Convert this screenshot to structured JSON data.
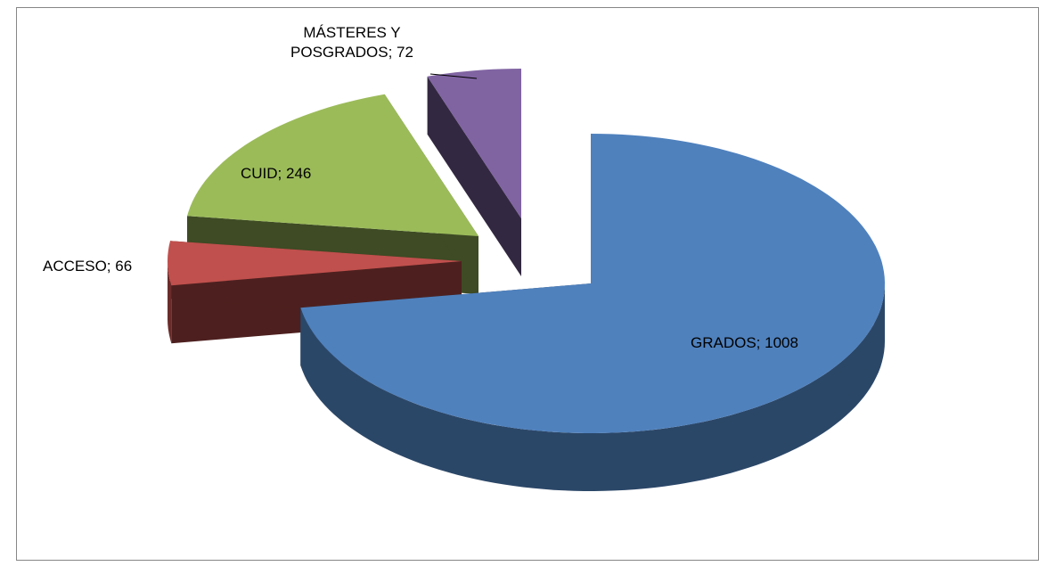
{
  "chart_data": {
    "type": "pie3d",
    "categories": [
      "GRADOS",
      "ACCESO",
      "CUID",
      "MÁSTERES Y POSGRADOS"
    ],
    "values": [
      1008,
      66,
      246,
      72
    ],
    "value_labels": [
      "GRADOS; 1008",
      "ACCESO; 66",
      "CUID; 246",
      "MÁSTERES Y POSGRADOS; 72"
    ],
    "colors": [
      "#4f81bd",
      "#c0504d",
      "#9bbb59",
      "#8064a2"
    ]
  }
}
